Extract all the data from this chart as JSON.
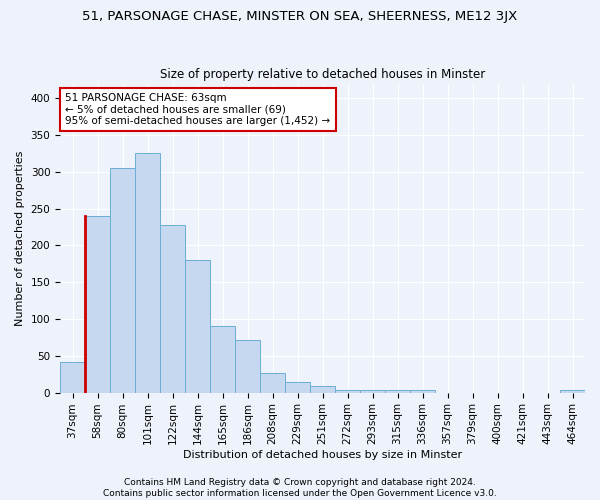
{
  "title": "51, PARSONAGE CHASE, MINSTER ON SEA, SHEERNESS, ME12 3JX",
  "subtitle": "Size of property relative to detached houses in Minster",
  "xlabel": "Distribution of detached houses by size in Minster",
  "ylabel": "Number of detached properties",
  "bar_labels": [
    "37sqm",
    "58sqm",
    "80sqm",
    "101sqm",
    "122sqm",
    "144sqm",
    "165sqm",
    "186sqm",
    "208sqm",
    "229sqm",
    "251sqm",
    "272sqm",
    "293sqm",
    "315sqm",
    "336sqm",
    "357sqm",
    "379sqm",
    "400sqm",
    "421sqm",
    "443sqm",
    "464sqm"
  ],
  "bar_values": [
    42,
    240,
    305,
    325,
    228,
    180,
    90,
    72,
    26,
    15,
    9,
    3,
    3,
    3,
    4,
    0,
    0,
    0,
    0,
    0,
    4
  ],
  "bar_color": "#c5d8f0",
  "bar_edgecolor": "#6aaed6",
  "highlight_bar_index": 1,
  "highlight_bar_color": "#cc0000",
  "annotation_text": "51 PARSONAGE CHASE: 63sqm\n← 5% of detached houses are smaller (69)\n95% of semi-detached houses are larger (1,452) →",
  "annotation_box_edgecolor": "#cc0000",
  "annotation_box_facecolor": "#ffffff",
  "ylim": [
    0,
    420
  ],
  "yticks": [
    0,
    50,
    100,
    150,
    200,
    250,
    300,
    350,
    400
  ],
  "footer_line1": "Contains HM Land Registry data © Crown copyright and database right 2024.",
  "footer_line2": "Contains public sector information licensed under the Open Government Licence v3.0.",
  "background_color": "#eef2fa",
  "grid_color": "#ffffff",
  "title_fontsize": 9.5,
  "subtitle_fontsize": 8.5,
  "axis_label_fontsize": 8,
  "tick_fontsize": 7.5,
  "annotation_fontsize": 7.5,
  "footer_fontsize": 6.5
}
